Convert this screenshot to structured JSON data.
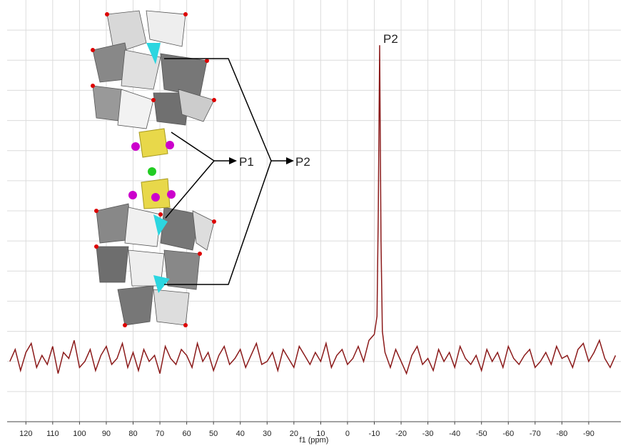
{
  "chart_data": {
    "type": "line",
    "x_label": "f1 (ppm)",
    "peak_label": "P2",
    "inset_labels": [
      "P1",
      "P2"
    ],
    "color": "#8b1a1a",
    "grid": true,
    "xlim": [
      127,
      -102
    ],
    "xticks": [
      120,
      110,
      100,
      90,
      80,
      70,
      60,
      50,
      40,
      30,
      20,
      10,
      0,
      -10,
      -20,
      -30,
      -40,
      -50,
      -60,
      -70,
      -80,
      -90
    ],
    "ylim": [
      0,
      14
    ],
    "yticks": [
      1,
      2,
      3,
      4,
      5,
      6,
      7,
      8,
      9,
      10,
      11,
      12,
      13
    ],
    "x": [
      126,
      124,
      122,
      120,
      118,
      116,
      114,
      112,
      110,
      108,
      106,
      104,
      102,
      100,
      98,
      96,
      94,
      92,
      90,
      88,
      86,
      84,
      82,
      80,
      78,
      76,
      74,
      72,
      70,
      68,
      66,
      64,
      62,
      60,
      58,
      56,
      54,
      52,
      50,
      48,
      46,
      44,
      42,
      40,
      38,
      36,
      34,
      32,
      30,
      28,
      26,
      24,
      22,
      20,
      18,
      16,
      14,
      12,
      10,
      8,
      6,
      4,
      2,
      0,
      -2,
      -4,
      -6,
      -8,
      -10,
      -11,
      -11.5,
      -12,
      -12.5,
      -13,
      -14,
      -16,
      -18,
      -20,
      -22,
      -24,
      -26,
      -28,
      -30,
      -32,
      -34,
      -36,
      -38,
      -40,
      -42,
      -44,
      -46,
      -48,
      -50,
      -52,
      -54,
      -56,
      -58,
      -60,
      -62,
      -64,
      -66,
      -68,
      -70,
      -72,
      -74,
      -76,
      -78,
      -80,
      -82,
      -84,
      -86,
      -88,
      -90,
      -92,
      -94,
      -96,
      -98,
      -100
    ],
    "values": [
      2.0,
      2.4,
      1.7,
      2.3,
      2.6,
      1.8,
      2.2,
      1.9,
      2.5,
      1.6,
      2.3,
      2.1,
      2.7,
      1.8,
      2.0,
      2.4,
      1.7,
      2.2,
      2.5,
      1.9,
      2.1,
      2.6,
      1.8,
      2.3,
      1.7,
      2.4,
      2.0,
      2.2,
      1.6,
      2.5,
      2.1,
      1.9,
      2.4,
      2.2,
      1.8,
      2.6,
      2.0,
      2.3,
      1.7,
      2.2,
      2.5,
      1.9,
      2.1,
      2.4,
      1.8,
      2.2,
      2.6,
      1.9,
      2.0,
      2.3,
      1.7,
      2.4,
      2.1,
      1.8,
      2.5,
      2.2,
      1.9,
      2.3,
      2.0,
      2.6,
      1.8,
      2.2,
      2.4,
      1.9,
      2.1,
      2.5,
      2.0,
      2.7,
      2.9,
      3.5,
      7.0,
      12.5,
      6.0,
      3.0,
      2.3,
      1.8,
      2.4,
      2.0,
      1.6,
      2.2,
      2.5,
      1.9,
      2.1,
      1.7,
      2.4,
      2.0,
      2.3,
      1.8,
      2.5,
      2.1,
      1.9,
      2.2,
      1.7,
      2.4,
      2.0,
      2.3,
      1.8,
      2.5,
      2.1,
      1.9,
      2.2,
      2.4,
      1.8,
      2.0,
      2.3,
      1.9,
      2.5,
      2.1,
      2.2,
      1.8,
      2.4,
      2.6,
      2.0,
      2.3,
      2.7,
      2.1,
      1.8,
      2.2
    ]
  }
}
